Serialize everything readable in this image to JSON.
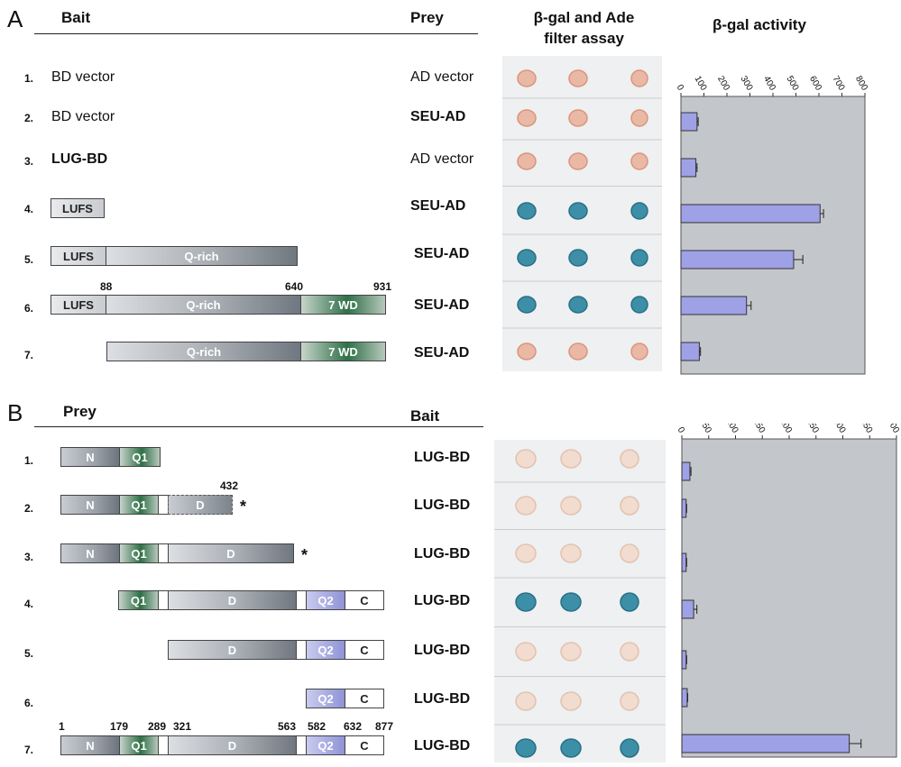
{
  "panelA": {
    "letter": "A",
    "bait_header": "Bait",
    "prey_header": "Prey",
    "assay_header_l1": "β-gal and Ade",
    "assay_header_l2": "filter assay",
    "activity_header": "β-gal activity",
    "rows": [
      {
        "n": "1.",
        "bait": "BD vector",
        "prey": "AD vector",
        "value": 0,
        "err": 0,
        "colony": "pink"
      },
      {
        "n": "2.",
        "bait": "BD vector",
        "prey": "SEU-AD",
        "value": 70,
        "err": 5,
        "colony": "pink"
      },
      {
        "n": "3.",
        "bait": "LUG-BD",
        "prey": "AD vector",
        "value": 65,
        "err": 5,
        "colony": "pink"
      },
      {
        "n": "4.",
        "bait": "",
        "prey": "SEU-AD",
        "value": 605,
        "err": 15,
        "colony": "blue"
      },
      {
        "n": "5.",
        "bait": "",
        "prey": "SEU-AD",
        "value": 490,
        "err": 40,
        "colony": "blue"
      },
      {
        "n": "6.",
        "bait": "",
        "prey": "SEU-AD",
        "value": 285,
        "err": 20,
        "colony": "blue"
      },
      {
        "n": "7.",
        "bait": "",
        "prey": "SEU-AD",
        "value": 80,
        "err": 5,
        "colony": "pink"
      }
    ],
    "segments": {
      "lufs": "LUFS",
      "qrich": "Q-rich",
      "wd": "7 WD"
    },
    "positions": [
      "88",
      "640",
      "931"
    ],
    "axis": {
      "ticks": [
        "0",
        "100",
        "200",
        "300",
        "400",
        "500",
        "600",
        "700",
        "800"
      ],
      "max": 800
    }
  },
  "panelB": {
    "letter": "B",
    "prey_header": "Prey",
    "bait_header": "Bait",
    "rows": [
      {
        "n": "1.",
        "bait": "LUG-BD",
        "value": 15,
        "err": 2,
        "colony": "pale"
      },
      {
        "n": "2.",
        "bait": "LUG-BD",
        "value": 8,
        "err": 1,
        "colony": "pale"
      },
      {
        "n": "3.",
        "bait": "LUG-BD",
        "value": 8,
        "err": 1,
        "colony": "pale"
      },
      {
        "n": "4.",
        "bait": "LUG-BD",
        "value": 22,
        "err": 6,
        "colony": "blue"
      },
      {
        "n": "5.",
        "bait": "LUG-BD",
        "value": 8,
        "err": 1,
        "colony": "pale"
      },
      {
        "n": "6.",
        "bait": "LUG-BD",
        "value": 10,
        "err": 1,
        "colony": "pale"
      },
      {
        "n": "7.",
        "bait": "LUG-BD",
        "value": 312,
        "err": 22,
        "colony": "blue"
      }
    ],
    "segments": {
      "n": "N",
      "q1": "Q1",
      "d": "D",
      "q2": "Q2",
      "c": "C"
    },
    "pos432": "432",
    "star": "*",
    "positions": [
      "1",
      "179",
      "289",
      "321",
      "563",
      "582",
      "632",
      "877"
    ],
    "axis": {
      "ticks": [
        "0",
        "50",
        "100",
        "150",
        "200",
        "250",
        "300",
        "350",
        "400"
      ],
      "max": 400
    }
  },
  "colors": {
    "bar": "#9fa1e6",
    "chartBg": "#c3c7cc",
    "blue": "#3f8fa8",
    "pink": "#e8b8a4"
  }
}
